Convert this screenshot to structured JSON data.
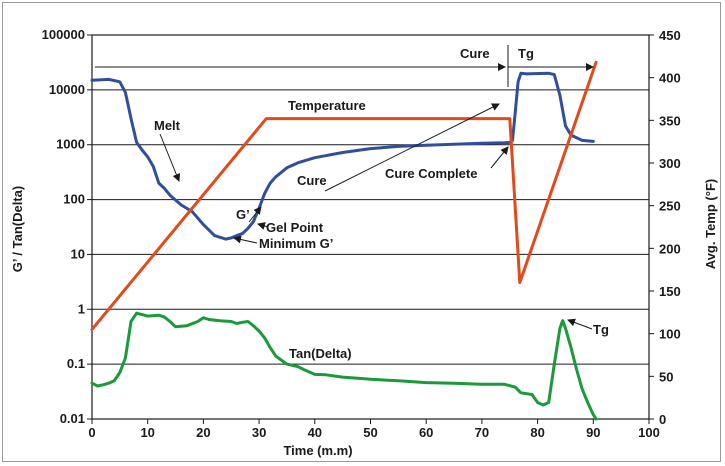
{
  "chart_data": {
    "type": "line",
    "xlabel": "Time (m.m)",
    "ylabel_left": "G’ / Tan(Delta)",
    "ylabel_right": "Avg. Temp (°F)",
    "xlim": [
      0,
      100
    ],
    "ylim_left": [
      0.01,
      100000
    ],
    "ylim_right": [
      0,
      450
    ],
    "left_scale": "log",
    "grid": "horizontal",
    "x_ticks": [
      "0",
      "10",
      "20",
      "30",
      "40",
      "50",
      "60",
      "70",
      "80",
      "90",
      "100"
    ],
    "left_ticks": [
      "0.01",
      "0.1",
      "1",
      "10",
      "100",
      "1000",
      "10000",
      "100000"
    ],
    "right_ticks": [
      "0",
      "50",
      "100",
      "150",
      "200",
      "250",
      "300",
      "350",
      "400",
      "450"
    ],
    "series": [
      {
        "axis": "left",
        "color": "#2f4f9e",
        "points": [
          [
            0,
            15000
          ],
          [
            3,
            15500
          ],
          [
            5,
            14000
          ],
          [
            6,
            9000
          ],
          [
            7,
            3000
          ],
          [
            8,
            1100
          ],
          [
            9,
            800
          ],
          [
            10,
            600
          ],
          [
            11,
            400
          ],
          [
            12,
            200
          ],
          [
            13,
            160
          ],
          [
            14,
            120
          ],
          [
            16,
            80
          ],
          [
            18,
            60
          ],
          [
            20,
            35
          ],
          [
            22,
            22
          ],
          [
            24,
            19
          ],
          [
            25,
            20
          ],
          [
            26,
            22
          ],
          [
            27,
            24
          ],
          [
            28,
            30
          ],
          [
            29,
            40
          ],
          [
            30,
            70
          ],
          [
            31,
            130
          ],
          [
            32,
            200
          ],
          [
            33,
            260
          ],
          [
            35,
            380
          ],
          [
            37,
            470
          ],
          [
            40,
            580
          ],
          [
            45,
            720
          ],
          [
            50,
            850
          ],
          [
            55,
            930
          ],
          [
            60,
            980
          ],
          [
            65,
            1020
          ],
          [
            70,
            1060
          ],
          [
            74,
            1090
          ],
          [
            75,
            1100
          ],
          [
            75.5,
            1200
          ],
          [
            76,
            4000
          ],
          [
            76.5,
            14000
          ],
          [
            77,
            20000
          ],
          [
            78,
            19500
          ],
          [
            82,
            20000
          ],
          [
            83,
            19000
          ],
          [
            84,
            8000
          ],
          [
            85,
            2200
          ],
          [
            86,
            1500
          ],
          [
            88,
            1200
          ],
          [
            90,
            1150
          ]
        ]
      },
      {
        "axis": "left",
        "color": "#1a9a3a",
        "points": [
          [
            0,
            0.045
          ],
          [
            1,
            0.04
          ],
          [
            2,
            0.042
          ],
          [
            3,
            0.045
          ],
          [
            4,
            0.05
          ],
          [
            5,
            0.07
          ],
          [
            6,
            0.13
          ],
          [
            7,
            0.6
          ],
          [
            8,
            0.85
          ],
          [
            9,
            0.8
          ],
          [
            10,
            0.75
          ],
          [
            12,
            0.78
          ],
          [
            13,
            0.72
          ],
          [
            14,
            0.6
          ],
          [
            15,
            0.48
          ],
          [
            17,
            0.5
          ],
          [
            19,
            0.6
          ],
          [
            20,
            0.7
          ],
          [
            21,
            0.65
          ],
          [
            23,
            0.62
          ],
          [
            25,
            0.6
          ],
          [
            26,
            0.55
          ],
          [
            27,
            0.58
          ],
          [
            28,
            0.6
          ],
          [
            29,
            0.5
          ],
          [
            30,
            0.4
          ],
          [
            31,
            0.3
          ],
          [
            32,
            0.2
          ],
          [
            33,
            0.14
          ],
          [
            35,
            0.1
          ],
          [
            37,
            0.09
          ],
          [
            38,
            0.08
          ],
          [
            40,
            0.065
          ],
          [
            42,
            0.064
          ],
          [
            45,
            0.058
          ],
          [
            48,
            0.055
          ],
          [
            50,
            0.053
          ],
          [
            55,
            0.05
          ],
          [
            60,
            0.046
          ],
          [
            65,
            0.045
          ],
          [
            70,
            0.043
          ],
          [
            74,
            0.043
          ],
          [
            76,
            0.038
          ],
          [
            77,
            0.03
          ],
          [
            79,
            0.028
          ],
          [
            80,
            0.02
          ],
          [
            81,
            0.018
          ],
          [
            82,
            0.02
          ],
          [
            83,
            0.1
          ],
          [
            84,
            0.45
          ],
          [
            84.5,
            0.62
          ],
          [
            85,
            0.45
          ],
          [
            86,
            0.2
          ],
          [
            87,
            0.08
          ],
          [
            88,
            0.035
          ],
          [
            89,
            0.02
          ],
          [
            90,
            0.012
          ],
          [
            90.5,
            0.01
          ]
        ]
      },
      {
        "axis": "right",
        "color": "#e24a1c",
        "points": [
          [
            0,
            105
          ],
          [
            31.3,
            352
          ],
          [
            75,
            352
          ],
          [
            76.8,
            160
          ],
          [
            90.5,
            418
          ]
        ]
      }
    ],
    "annotations": [
      {
        "text": "Melt"
      },
      {
        "text": "Temperature"
      },
      {
        "text": "Cure"
      },
      {
        "text": "Cure Complete"
      },
      {
        "text": "G’"
      },
      {
        "text": "Gel Point"
      },
      {
        "text": "Minimum G’"
      },
      {
        "text": "Tan(Delta)"
      },
      {
        "text": "Tg"
      },
      {
        "text": "Cure"
      },
      {
        "text": "Tg"
      }
    ]
  }
}
